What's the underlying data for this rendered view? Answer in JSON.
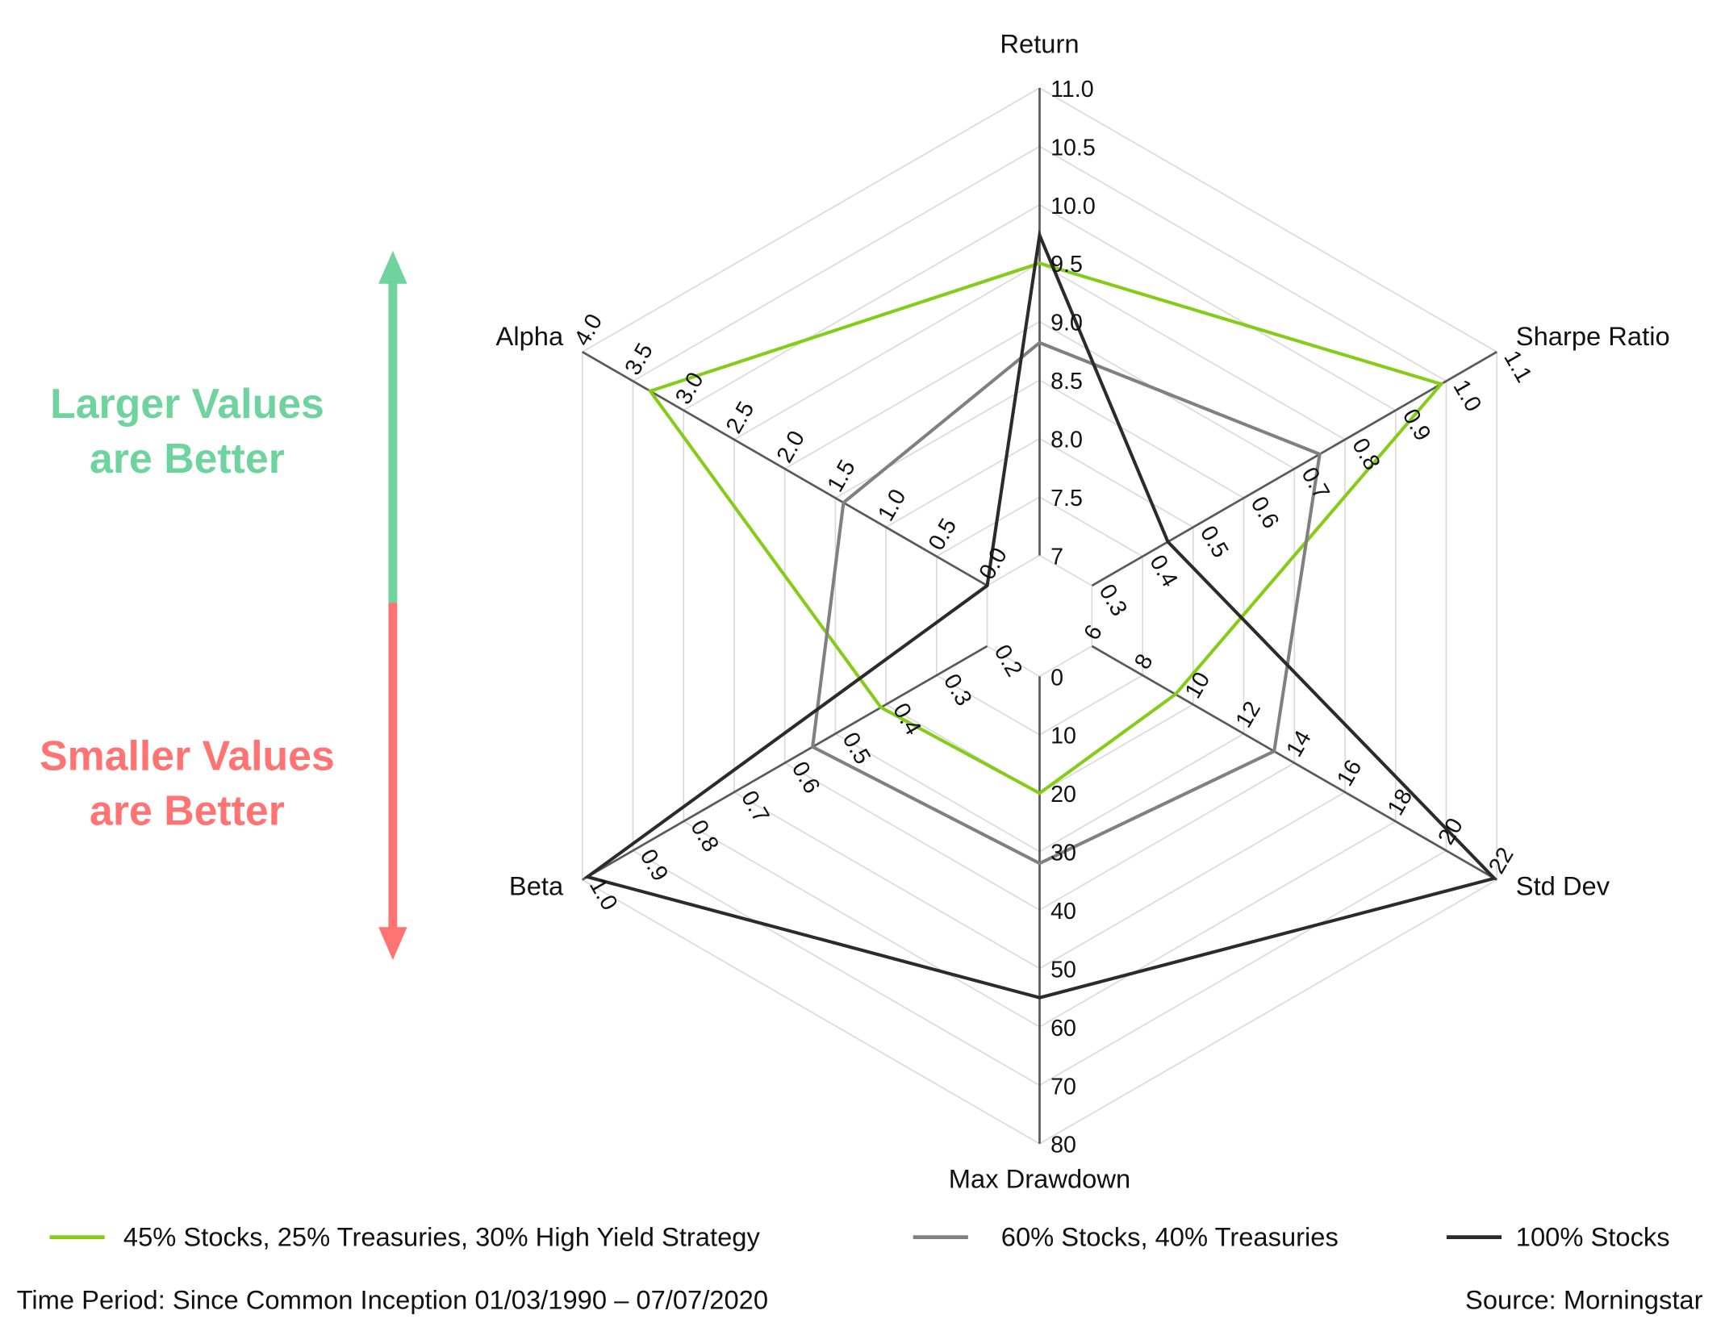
{
  "chart_data": {
    "type": "radar",
    "axes": [
      {
        "name": "Return",
        "ticks": [
          "7",
          "7.5",
          "8.0",
          "8.5",
          "9.0",
          "9.5",
          "10.0",
          "10.5",
          "11.0"
        ],
        "range": [
          7,
          11
        ]
      },
      {
        "name": "Sharpe Ratio",
        "ticks": [
          "0.3",
          "0.4",
          "0.5",
          "0.6",
          "0.7",
          "0.8",
          "0.9",
          "1.0",
          "1.1"
        ],
        "range": [
          0.3,
          1.1
        ]
      },
      {
        "name": "Std Dev",
        "ticks": [
          "6",
          "8",
          "10",
          "12",
          "14",
          "16",
          "18",
          "20",
          "22"
        ],
        "range": [
          6,
          22
        ]
      },
      {
        "name": "Max Drawdown",
        "ticks": [
          "0",
          "10",
          "20",
          "30",
          "40",
          "50",
          "60",
          "70",
          "80"
        ],
        "range": [
          0,
          80
        ]
      },
      {
        "name": "Beta",
        "ticks": [
          "0.2",
          "0.3",
          "0.4",
          "0.5",
          "0.6",
          "0.7",
          "0.8",
          "0.9",
          "1.0"
        ],
        "range": [
          0.2,
          1.0
        ]
      },
      {
        "name": "Alpha",
        "ticks": [
          "0.0",
          "0.5",
          "1.0",
          "1.5",
          "2.0",
          "2.5",
          "3.0",
          "3.5",
          "4.0"
        ],
        "range": [
          0.0,
          4.0
        ]
      }
    ],
    "series": [
      {
        "name": "45% Stocks, 25% Treasuries, 30% High Yield Strategy",
        "color": "#84cc16",
        "values": [
          9.5,
          0.99,
          9.3,
          20,
          0.41,
          3.33
        ]
      },
      {
        "name": "60% Stocks, 40% Treasuries",
        "color": "#808080",
        "values": [
          8.82,
          0.75,
          13.2,
          32,
          0.545,
          1.42
        ]
      },
      {
        "name": "100% Stocks",
        "color": "#2b2b2b",
        "values": [
          9.74,
          0.45,
          21.9,
          55,
          0.99,
          0.0
        ]
      }
    ],
    "grid": true,
    "legend": "bottom"
  },
  "side_labels": {
    "better_larger": "Larger Values\nare Better",
    "better_smaller": "Smaller Values\nare Better",
    "green": "#6fd39e",
    "red": "#ff7373"
  },
  "footer": {
    "time_period": "Time Period: Since Common Inception 01/03/1990 – 07/07/2020",
    "source": "Source: Morningstar"
  }
}
